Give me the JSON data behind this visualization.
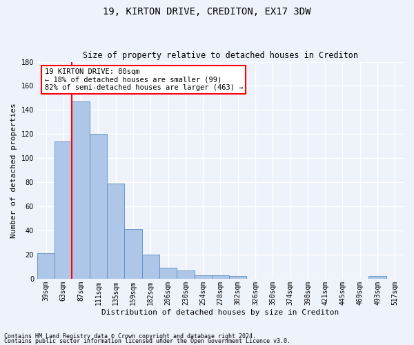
{
  "title1": "19, KIRTON DRIVE, CREDITON, EX17 3DW",
  "title2": "Size of property relative to detached houses in Crediton",
  "xlabel": "Distribution of detached houses by size in Crediton",
  "ylabel": "Number of detached properties",
  "footnote1": "Contains HM Land Registry data © Crown copyright and database right 2024.",
  "footnote2": "Contains public sector information licensed under the Open Government Licence v3.0.",
  "bar_labels": [
    "39sqm",
    "63sqm",
    "87sqm",
    "111sqm",
    "135sqm",
    "159sqm",
    "182sqm",
    "206sqm",
    "230sqm",
    "254sqm",
    "278sqm",
    "302sqm",
    "326sqm",
    "350sqm",
    "374sqm",
    "398sqm",
    "421sqm",
    "445sqm",
    "469sqm",
    "493sqm",
    "517sqm"
  ],
  "bar_values": [
    21,
    114,
    147,
    120,
    79,
    41,
    20,
    9,
    7,
    3,
    3,
    2,
    0,
    0,
    0,
    0,
    0,
    0,
    0,
    2,
    0
  ],
  "bar_color": "#aec6e8",
  "bar_edge_color": "#5a8fc0",
  "vline_x": 1.5,
  "annotation_text": "19 KIRTON DRIVE: 80sqm\n← 18% of detached houses are smaller (99)\n82% of semi-detached houses are larger (463) →",
  "annotation_box_color": "white",
  "annotation_box_edge_color": "red",
  "vline_color": "red",
  "ylim": [
    0,
    180
  ],
  "yticks": [
    0,
    20,
    40,
    60,
    80,
    100,
    120,
    140,
    160,
    180
  ],
  "bg_color": "#eef2fb",
  "plot_bg_color": "#eef2fb",
  "grid_color": "white",
  "title1_fontsize": 10,
  "title2_fontsize": 8.5,
  "ylabel_fontsize": 8,
  "xlabel_fontsize": 8,
  "tick_fontsize": 7,
  "footnote_fontsize": 6
}
